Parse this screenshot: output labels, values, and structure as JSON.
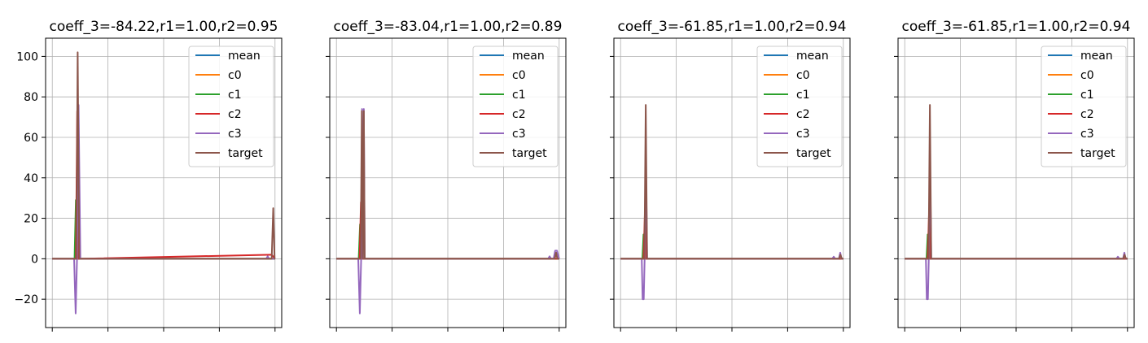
{
  "figure": {
    "background": "#ffffff",
    "series_colors": {
      "mean": "#1f77b4",
      "c0": "#ff7f0e",
      "c1": "#2ca02c",
      "c2": "#d62728",
      "c3": "#9467bd",
      "target": "#8c564b"
    }
  },
  "chart_data": [
    {
      "type": "line",
      "title": "coeff_3=-84.22,r1=1.00,r2=0.95",
      "xlabel": "",
      "ylabel": "",
      "ylim": [
        -34,
        109
      ],
      "xlim": [
        -0.03,
        1.03
      ],
      "yticks": [
        -20,
        0,
        20,
        40,
        60,
        80,
        100
      ],
      "ytick_labels": [
        "−20",
        "0",
        "20",
        "40",
        "60",
        "80",
        "100"
      ],
      "xticks": [
        0,
        0.25,
        0.5,
        0.75,
        1.0
      ],
      "show_ytick_labels": true,
      "grid": true,
      "legend": "top-right",
      "series": [
        {
          "name": "mean",
          "x": [
            0,
            0.105,
            0.112,
            0.119,
            0.128,
            0.98,
            1.0
          ],
          "values": [
            0,
            0,
            0.5,
            0,
            0,
            0,
            0
          ]
        },
        {
          "name": "c0",
          "x": [
            0,
            0.105,
            0.112,
            0.119,
            0.128,
            0.98,
            1.0
          ],
          "values": [
            0,
            0,
            0.5,
            0,
            0,
            0,
            0
          ]
        },
        {
          "name": "c1",
          "x": [
            0,
            0.1,
            0.106,
            0.112,
            0.124,
            0.97,
            1.0
          ],
          "values": [
            0,
            0,
            29,
            0,
            0,
            0,
            0
          ]
        },
        {
          "name": "c2",
          "x": [
            0,
            0.106,
            0.112,
            0.118,
            0.127,
            0.985,
            1.0
          ],
          "values": [
            0,
            0,
            73,
            0,
            0,
            2,
            0
          ]
        },
        {
          "name": "c3",
          "x": [
            0,
            0.098,
            0.105,
            0.111,
            0.118,
            0.126,
            0.96,
            0.967,
            0.974,
            1.0
          ],
          "values": [
            0,
            0,
            -27,
            0,
            76,
            0,
            0,
            1.2,
            0,
            0
          ]
        },
        {
          "name": "target",
          "x": [
            0,
            0.108,
            0.114,
            0.121,
            0.13,
            0.985,
            0.992,
            0.998,
            1.0
          ],
          "values": [
            0,
            0,
            102,
            0,
            0,
            0,
            25,
            0,
            0
          ]
        }
      ]
    },
    {
      "type": "line",
      "title": "coeff_3=-83.04,r1=1.00,r2=0.89",
      "xlabel": "",
      "ylabel": "",
      "ylim": [
        -34,
        109
      ],
      "xlim": [
        -0.03,
        1.03
      ],
      "yticks": [
        -20,
        0,
        20,
        40,
        60,
        80,
        100
      ],
      "ytick_labels": [
        "−20",
        "0",
        "20",
        "40",
        "60",
        "80",
        "100"
      ],
      "xticks": [
        0,
        0.25,
        0.5,
        0.75,
        1.0
      ],
      "show_ytick_labels": false,
      "grid": true,
      "legend": "top-right",
      "series": [
        {
          "name": "mean",
          "x": [
            0,
            0.105,
            0.112,
            0.119,
            0.128,
            1.0
          ],
          "values": [
            0,
            0,
            0.5,
            0,
            0,
            0
          ]
        },
        {
          "name": "c0",
          "x": [
            0,
            0.105,
            0.112,
            0.119,
            0.128,
            1.0
          ],
          "values": [
            0,
            0,
            0.5,
            0,
            0,
            0
          ]
        },
        {
          "name": "c1",
          "x": [
            0,
            0.1,
            0.106,
            0.112,
            0.124,
            1.0
          ],
          "values": [
            0,
            0,
            17,
            0,
            0,
            0
          ]
        },
        {
          "name": "c2",
          "x": [
            0,
            0.104,
            0.11,
            0.116,
            0.124,
            1.0
          ],
          "values": [
            0,
            0,
            28,
            0,
            0,
            0
          ]
        },
        {
          "name": "c3",
          "x": [
            0,
            0.098,
            0.105,
            0.111,
            0.115,
            0.119,
            0.123,
            0.127,
            0.95,
            0.957,
            0.964,
            0.975,
            0.982,
            0.99,
            1.0
          ],
          "values": [
            0,
            0,
            -27,
            0,
            74,
            0,
            74,
            0,
            0,
            1.2,
            0,
            0,
            4,
            4,
            0
          ]
        },
        {
          "name": "target",
          "x": [
            0,
            0.109,
            0.114,
            0.119,
            0.123,
            0.127,
            0.98,
            0.986,
            0.992,
            1.0
          ],
          "values": [
            0,
            0,
            73,
            0,
            73,
            0,
            0,
            3,
            0,
            0
          ]
        }
      ]
    },
    {
      "type": "line",
      "title": "coeff_3=-61.85,r1=1.00,r2=0.94",
      "xlabel": "",
      "ylabel": "",
      "ylim": [
        -34,
        109
      ],
      "xlim": [
        -0.03,
        1.03
      ],
      "yticks": [
        -20,
        0,
        20,
        40,
        60,
        80,
        100
      ],
      "ytick_labels": [
        "−20",
        "0",
        "20",
        "40",
        "60",
        "80",
        "100"
      ],
      "xticks": [
        0,
        0.25,
        0.5,
        0.75,
        1.0
      ],
      "show_ytick_labels": false,
      "grid": true,
      "legend": "top-right",
      "series": [
        {
          "name": "mean",
          "x": [
            0,
            0.105,
            0.112,
            0.119,
            0.128,
            1.0
          ],
          "values": [
            0,
            0,
            0.5,
            0,
            0,
            0
          ]
        },
        {
          "name": "c0",
          "x": [
            0,
            0.105,
            0.112,
            0.119,
            0.128,
            1.0
          ],
          "values": [
            0,
            0,
            0.5,
            0,
            0,
            0
          ]
        },
        {
          "name": "c1",
          "x": [
            0,
            0.098,
            0.103,
            0.108,
            0.12,
            1.0
          ],
          "values": [
            0,
            0,
            12,
            0,
            0,
            0
          ]
        },
        {
          "name": "c2",
          "x": [
            0,
            0.103,
            0.109,
            0.115,
            0.124,
            1.0
          ],
          "values": [
            0,
            0,
            22,
            0,
            0,
            0
          ]
        },
        {
          "name": "c3",
          "x": [
            0,
            0.095,
            0.099,
            0.104,
            0.108,
            0.113,
            0.119,
            0.126,
            0.95,
            0.957,
            0.964,
            0.98,
            0.986,
            0.992,
            1.0
          ],
          "values": [
            0,
            0,
            -20,
            -20,
            0,
            55,
            0,
            0,
            0,
            1,
            0,
            0,
            3,
            0,
            0
          ]
        },
        {
          "name": "target",
          "x": [
            0,
            0.107,
            0.113,
            0.119,
            0.128,
            0.981,
            0.987,
            0.993,
            1.0
          ],
          "values": [
            0,
            0,
            76,
            0,
            0,
            0,
            2,
            0,
            0
          ]
        }
      ]
    },
    {
      "type": "line",
      "title": "coeff_3=-61.85,r1=1.00,r2=0.94",
      "xlabel": "",
      "ylabel": "",
      "ylim": [
        -34,
        109
      ],
      "xlim": [
        -0.03,
        1.03
      ],
      "yticks": [
        -20,
        0,
        20,
        40,
        60,
        80,
        100
      ],
      "ytick_labels": [
        "−20",
        "0",
        "20",
        "40",
        "60",
        "80",
        "100"
      ],
      "xticks": [
        0,
        0.25,
        0.5,
        0.75,
        1.0
      ],
      "show_ytick_labels": false,
      "grid": true,
      "legend": "top-right",
      "series": [
        {
          "name": "mean",
          "x": [
            0,
            0.105,
            0.112,
            0.119,
            0.128,
            1.0
          ],
          "values": [
            0,
            0,
            0.5,
            0,
            0,
            0
          ]
        },
        {
          "name": "c0",
          "x": [
            0,
            0.105,
            0.112,
            0.119,
            0.128,
            1.0
          ],
          "values": [
            0,
            0,
            0.5,
            0,
            0,
            0
          ]
        },
        {
          "name": "c1",
          "x": [
            0,
            0.098,
            0.103,
            0.108,
            0.12,
            1.0
          ],
          "values": [
            0,
            0,
            12,
            0,
            0,
            0
          ]
        },
        {
          "name": "c2",
          "x": [
            0,
            0.103,
            0.109,
            0.115,
            0.124,
            1.0
          ],
          "values": [
            0,
            0,
            22,
            0,
            0,
            0
          ]
        },
        {
          "name": "c3",
          "x": [
            0,
            0.095,
            0.099,
            0.104,
            0.108,
            0.113,
            0.119,
            0.126,
            0.95,
            0.957,
            0.964,
            0.98,
            0.986,
            0.992,
            1.0
          ],
          "values": [
            0,
            0,
            -20,
            -20,
            0,
            55,
            0,
            0,
            0,
            1,
            0,
            0,
            3,
            0,
            0
          ]
        },
        {
          "name": "target",
          "x": [
            0,
            0.107,
            0.113,
            0.119,
            0.128,
            0.981,
            0.987,
            0.993,
            1.0
          ],
          "values": [
            0,
            0,
            76,
            0,
            0,
            0,
            2,
            0,
            0
          ]
        }
      ]
    }
  ]
}
